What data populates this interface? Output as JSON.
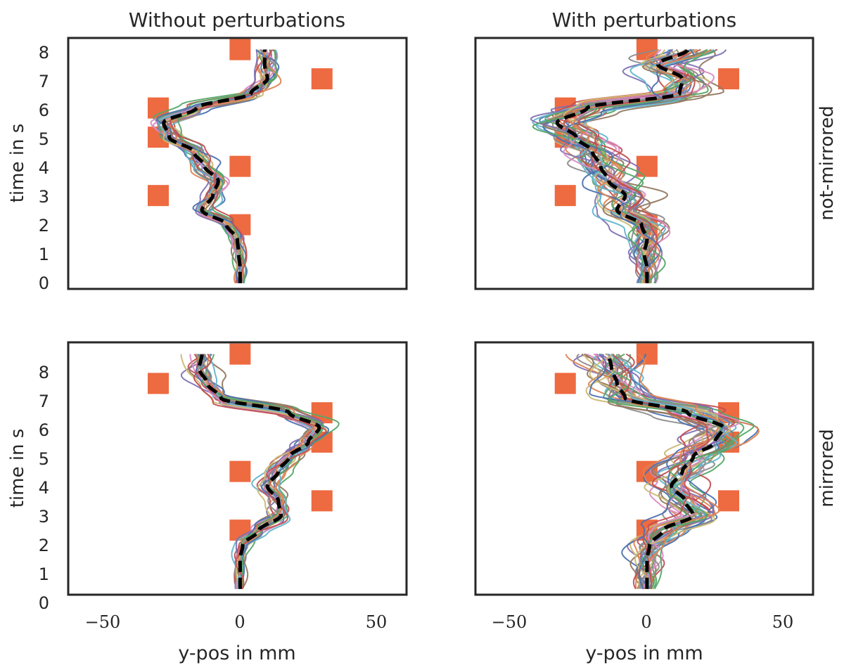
{
  "figure": {
    "col_titles": [
      "Without perturbations",
      "With perturbations"
    ],
    "row_labels": [
      "not-mirrored",
      "mirrored"
    ],
    "xlabel": "y-pos in mm",
    "ylabel": "time in s",
    "xticks": [
      "−50",
      "0",
      "50"
    ],
    "yticks": [
      "0",
      "1",
      "2",
      "3",
      "4",
      "5",
      "6",
      "7",
      "8"
    ]
  },
  "chart_data": {
    "type": "line",
    "xlim": [
      -63,
      61
    ],
    "ylim": [
      -0.2,
      8.4
    ],
    "grid": false,
    "trial_colors": [
      "#4c72b0",
      "#dd8452",
      "#55a868",
      "#c44e52",
      "#8172b3",
      "#937860",
      "#da8bc3",
      "#8c8c8c",
      "#ccb974",
      "#64b5cd"
    ],
    "mean_style": {
      "color": "#000000",
      "dash": "dashed"
    },
    "target_color": "#ee6a40",
    "panels": [
      {
        "row": "not-mirrored",
        "col": "Without perturbations",
        "targets": [
          {
            "x": 0,
            "t": 8
          },
          {
            "x": 30,
            "t": 7
          },
          {
            "x": -30,
            "t": 6
          },
          {
            "x": -30,
            "t": 5
          },
          {
            "x": 0,
            "t": 4
          },
          {
            "x": -30,
            "t": 3
          },
          {
            "x": 0,
            "t": 2
          }
        ],
        "mean": {
          "t": [
            0,
            0.5,
            1,
            1.5,
            2,
            2.5,
            3,
            3.5,
            4,
            4.5,
            5,
            5.5,
            6,
            6.5,
            7,
            7.5,
            8
          ],
          "x": [
            0,
            0,
            -0.5,
            -1,
            -5,
            -14,
            -10,
            -8,
            -13,
            -17,
            -26,
            -28,
            -16,
            4,
            10,
            9,
            9
          ]
        },
        "n_trials": 24,
        "spread": 3.5
      },
      {
        "row": "not-mirrored",
        "col": "With perturbations",
        "targets": [
          {
            "x": 0,
            "t": 8
          },
          {
            "x": 30,
            "t": 7
          },
          {
            "x": -30,
            "t": 6
          },
          {
            "x": -30,
            "t": 5
          },
          {
            "x": 0,
            "t": 4
          },
          {
            "x": -30,
            "t": 3
          },
          {
            "x": 0,
            "t": 2
          }
        ],
        "mean": {
          "t": [
            0,
            0.5,
            1,
            1.5,
            2,
            2.5,
            3,
            3.5,
            4,
            4.5,
            5,
            5.5,
            6,
            6.5,
            7,
            7.5,
            8
          ],
          "x": [
            0,
            0,
            -1,
            0,
            -2,
            -11,
            -8,
            -14,
            -17,
            -20,
            -26,
            -33,
            -22,
            12,
            13,
            4,
            15
          ]
        },
        "n_trials": 34,
        "spread": 8
      },
      {
        "row": "mirrored",
        "col": "Without perturbations",
        "targets": [
          {
            "x": 0,
            "t": 8
          },
          {
            "x": -30,
            "t": 7
          },
          {
            "x": 30,
            "t": 6
          },
          {
            "x": 30,
            "t": 5
          },
          {
            "x": 0,
            "t": 4
          },
          {
            "x": 30,
            "t": 3
          },
          {
            "x": 0,
            "t": 2
          }
        ],
        "mean": {
          "t": [
            0,
            0.5,
            1,
            1.5,
            2,
            2.5,
            3,
            3.5,
            4,
            4.5,
            5,
            5.5,
            6,
            6.5,
            7,
            7.5,
            8
          ],
          "x": [
            0,
            0,
            0,
            1,
            7,
            15,
            14,
            10,
            14,
            18,
            25,
            29,
            18,
            -7,
            -12,
            -15,
            -14
          ]
        },
        "n_trials": 24,
        "spread": 3.5
      },
      {
        "row": "mirrored",
        "col": "With perturbations",
        "targets": [
          {
            "x": 0,
            "t": 8
          },
          {
            "x": -30,
            "t": 7
          },
          {
            "x": 30,
            "t": 6
          },
          {
            "x": 30,
            "t": 5
          },
          {
            "x": 0,
            "t": 4
          },
          {
            "x": 30,
            "t": 3
          },
          {
            "x": 0,
            "t": 2
          }
        ],
        "mean": {
          "t": [
            0,
            0.5,
            1,
            1.5,
            2,
            2.5,
            3,
            3.5,
            4,
            4.5,
            5,
            5.5,
            6,
            6.5,
            7,
            7.5,
            8
          ],
          "x": [
            0,
            0,
            0,
            1,
            6,
            17,
            14,
            9,
            13,
            17,
            25,
            28,
            15,
            -8,
            -11,
            -13,
            -14
          ]
        },
        "n_trials": 34,
        "spread": 8
      }
    ]
  }
}
